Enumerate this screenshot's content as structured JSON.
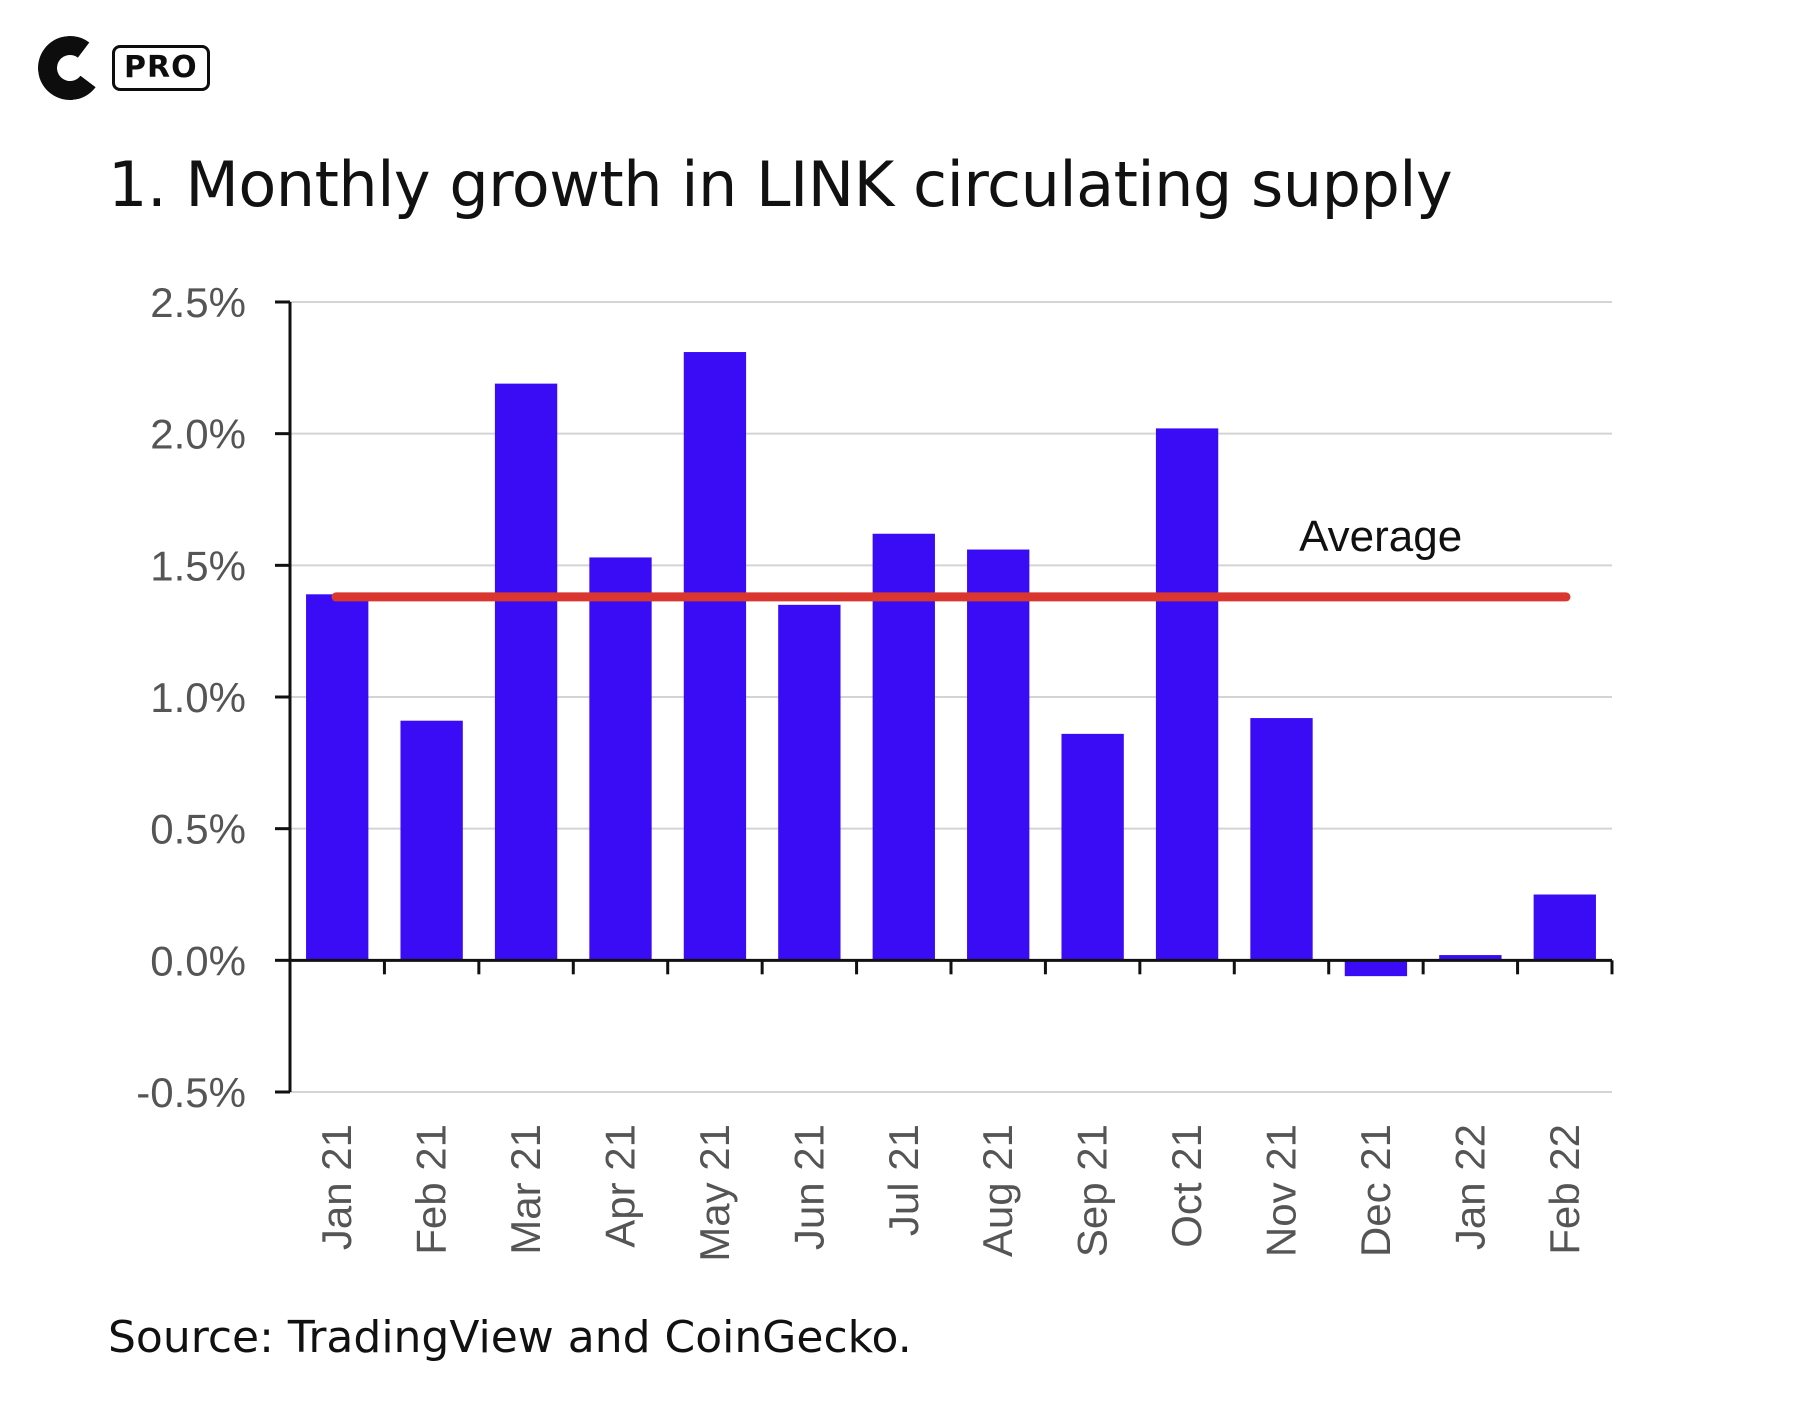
{
  "brand": {
    "logo_icon": "coinbase-c-icon",
    "badge": "PRO"
  },
  "title": "1. Monthly growth in LINK circulating supply",
  "source": "Source: TradingView and CoinGecko.",
  "chart_data": {
    "type": "bar",
    "categories": [
      "Jan 21",
      "Feb 21",
      "Mar 21",
      "Apr 21",
      "May 21",
      "Jun 21",
      "Jul 21",
      "Aug 21",
      "Sep 21",
      "Oct 21",
      "Nov 21",
      "Dec 21",
      "Jan 22",
      "Feb 22"
    ],
    "values": [
      1.39,
      0.91,
      2.19,
      1.53,
      2.31,
      1.35,
      1.62,
      1.56,
      0.86,
      2.02,
      0.92,
      -0.06,
      0.02,
      0.25
    ],
    "ylim": [
      -0.5,
      2.5
    ],
    "yticks": [
      -0.5,
      0.0,
      0.5,
      1.0,
      1.5,
      2.0,
      2.5
    ],
    "ytick_labels": [
      "-0.5%",
      "0.0%",
      "0.5%",
      "1.0%",
      "1.5%",
      "2.0%",
      "2.5%"
    ],
    "bar_color": "#3a0cf5",
    "grid": true,
    "average": {
      "label": "Average",
      "value": 1.38,
      "color": "#d93630"
    }
  }
}
